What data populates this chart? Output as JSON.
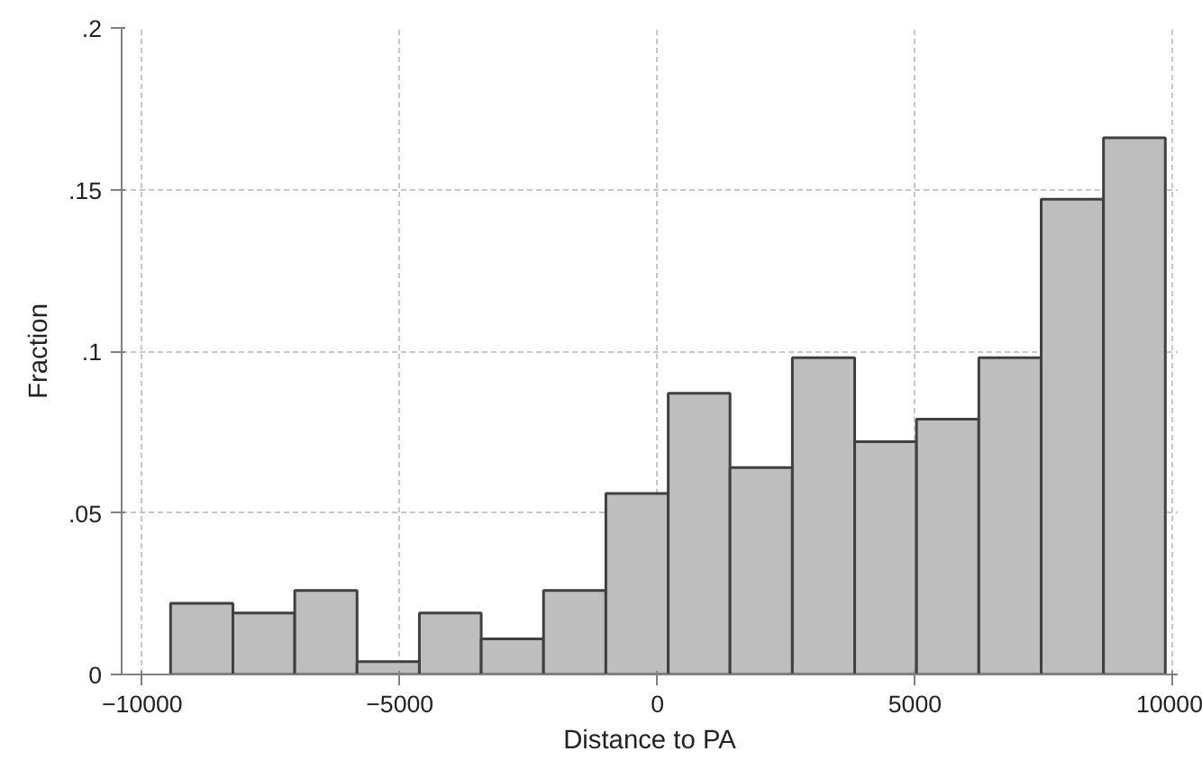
{
  "chart_data": {
    "type": "histogram",
    "xlabel": "Distance to PA",
    "ylabel": "Fraction",
    "bins": [
      -9450,
      -8240,
      -7040,
      -5830,
      -4620,
      -3420,
      -2210,
      -1000,
      210,
      1410,
      2620,
      3830,
      5030,
      6240,
      7450,
      8660,
      9860
    ],
    "values": [
      0.022,
      0.019,
      0.026,
      0.004,
      0.019,
      0.011,
      0.026,
      0.056,
      0.087,
      0.064,
      0.098,
      0.072,
      0.079,
      0.098,
      0.147,
      0.166
    ],
    "color": "#bebebe",
    "xlim": [
      -10400,
      10100
    ],
    "xticks": [
      -10000,
      -5000,
      0,
      5000,
      10000
    ],
    "ylim": [
      0,
      0.2
    ],
    "yticks": [
      0,
      {
        "value": 0.05,
        "label": ".05"
      },
      {
        "value": 0.1,
        "label": ".1"
      },
      {
        "value": 0.15,
        "label": ".15"
      },
      {
        "value": 0.2,
        "label": ".2"
      }
    ],
    "grid": true
  }
}
